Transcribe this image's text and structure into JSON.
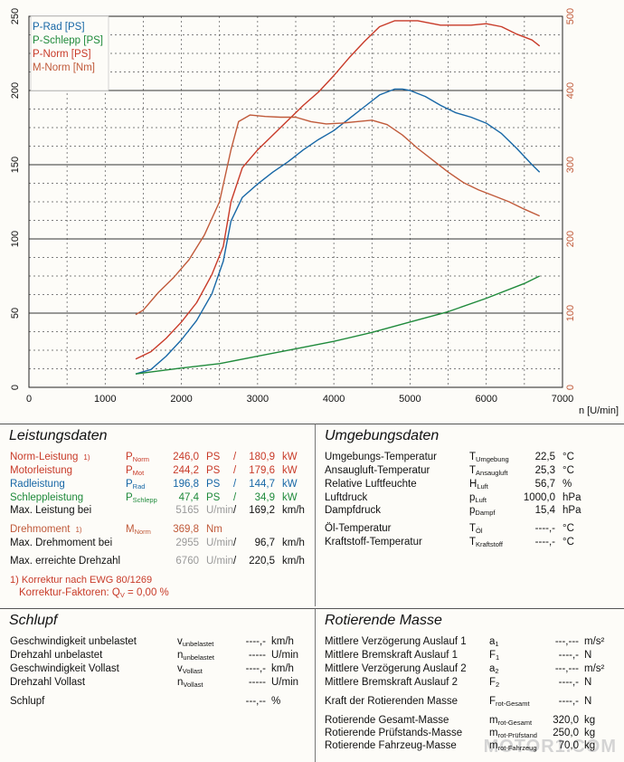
{
  "chart_data": {
    "type": "line",
    "xlabel": "n [U/min]",
    "x_ticks": [
      0,
      1000,
      2000,
      3000,
      4000,
      5000,
      6000,
      7000
    ],
    "y_left_ticks": [
      0,
      50,
      100,
      150,
      200,
      250
    ],
    "y_right_ticks": [
      0,
      100,
      200,
      300,
      400,
      500
    ],
    "xlim": [
      0,
      7000
    ],
    "ylim_left": [
      0,
      250
    ],
    "ylim_right": [
      0,
      500
    ],
    "grid": true,
    "legend_position": "top-left",
    "series": [
      {
        "name": "P-Rad [PS]",
        "axis": "left",
        "color": "#1767a6",
        "x": [
          1400,
          1600,
          1800,
          2000,
          2200,
          2400,
          2550,
          2650,
          2800,
          3000,
          3200,
          3400,
          3600,
          3800,
          4000,
          4200,
          4400,
          4600,
          4800,
          4900,
          5000,
          5200,
          5400,
          5600,
          5800,
          6000,
          6200,
          6400,
          6600,
          6700
        ],
        "y": [
          9,
          12,
          21,
          32,
          45,
          63,
          85,
          112,
          128,
          137,
          145,
          152,
          160,
          167,
          173,
          181,
          189,
          197,
          201,
          201,
          200,
          196,
          190,
          185,
          182,
          178,
          171,
          161,
          150,
          145
        ]
      },
      {
        "name": "P-Schlepp [PS]",
        "axis": "left",
        "color": "#1f8a3b",
        "x": [
          1400,
          2000,
          2500,
          3000,
          3500,
          4000,
          4500,
          5000,
          5500,
          6000,
          6500,
          6700
        ],
        "y": [
          9,
          13,
          16,
          21,
          26,
          31,
          37,
          44,
          51,
          60,
          70,
          75
        ]
      },
      {
        "name": "P-Norm [PS]",
        "axis": "left",
        "color": "#c83a28",
        "x": [
          1400,
          1600,
          1800,
          2000,
          2200,
          2400,
          2550,
          2650,
          2800,
          3000,
          3200,
          3400,
          3600,
          3800,
          4000,
          4200,
          4400,
          4600,
          4800,
          5000,
          5100,
          5200,
          5400,
          5600,
          5800,
          6000,
          6200,
          6400,
          6600,
          6700
        ],
        "y": [
          19,
          24,
          33,
          44,
          57,
          76,
          95,
          125,
          148,
          160,
          170,
          180,
          190,
          199,
          210,
          222,
          233,
          243,
          247,
          247,
          247,
          246,
          244,
          244,
          244,
          245,
          243,
          238,
          234,
          230
        ]
      },
      {
        "name": "M-Norm [Nm]",
        "axis": "right",
        "color": "#c05a3a",
        "x": [
          1400,
          1500,
          1700,
          1900,
          2100,
          2300,
          2500,
          2650,
          2750,
          2900,
          3100,
          3300,
          3500,
          3700,
          3900,
          4100,
          4300,
          4500,
          4700,
          4900,
          5100,
          5300,
          5500,
          5700,
          5900,
          6100,
          6300,
          6500,
          6700
        ],
        "y": [
          98,
          104,
          128,
          148,
          172,
          205,
          250,
          320,
          358,
          367,
          365,
          364,
          364,
          358,
          355,
          356,
          358,
          360,
          354,
          340,
          322,
          306,
          290,
          276,
          266,
          258,
          250,
          240,
          231
        ]
      }
    ]
  },
  "leistungsdaten": {
    "title": "Leistungsdaten",
    "rows": [
      {
        "label": "Norm-Leistung",
        "note": "1)",
        "sym": "P",
        "sub": "Norm",
        "ps": "246,0",
        "ps_unit": "PS",
        "kw": "180,9",
        "kw_unit": "kW"
      },
      {
        "label": "Motorleistung",
        "note": "",
        "sym": "P",
        "sub": "Mot",
        "ps": "244,2",
        "ps_unit": "PS",
        "kw": "179,6",
        "kw_unit": "kW"
      },
      {
        "label": "Radleistung",
        "note": "",
        "sym": "P",
        "sub": "Rad",
        "ps": "196,8",
        "ps_unit": "PS",
        "kw": "144,7",
        "kw_unit": "kW"
      },
      {
        "label": "Schleppleistung",
        "note": "",
        "sym": "P",
        "sub": "Schlepp",
        "ps": "47,4",
        "ps_unit": "PS",
        "kw": "34,9",
        "kw_unit": "kW"
      }
    ],
    "max_power": {
      "label": "Max. Leistung bei",
      "rpm": "5165",
      "rpm_unit": "U/min",
      "speed": "169,2",
      "speed_unit": "km/h"
    },
    "torque": {
      "label": "Drehmoment",
      "note": "1)",
      "sym": "M",
      "sub": "Norm",
      "value": "369,8",
      "unit": "Nm"
    },
    "max_torque": {
      "label": "Max. Drehmoment bei",
      "rpm": "2955",
      "rpm_unit": "U/min",
      "speed": "96,7",
      "speed_unit": "km/h"
    },
    "max_rpm": {
      "label": "Max. erreichte Drehzahl",
      "rpm": "6760",
      "rpm_unit": "U/min",
      "speed": "220,5",
      "speed_unit": "km/h"
    },
    "footnote1": "1) Korrektur nach EWG 80/1269",
    "footnote2": "Korrektur-Faktoren: Q",
    "footnote2_sub": "V",
    "footnote2_val": "=   0,00 %"
  },
  "umgebungsdaten": {
    "title": "Umgebungsdaten",
    "rows": [
      {
        "label": "Umgebungs-Temperatur",
        "sym": "T",
        "sub": "Umgebung",
        "value": "22,5",
        "unit": "°C"
      },
      {
        "label": "Ansaugluft-Temperatur",
        "sym": "T",
        "sub": "Ansaugluft",
        "value": "25,3",
        "unit": "°C"
      },
      {
        "label": "Relative Luftfeuchte",
        "sym": "H",
        "sub": "Luft",
        "value": "56,7",
        "unit": "%"
      },
      {
        "label": "Luftdruck",
        "sym": "p",
        "sub": "Luft",
        "value": "1000,0",
        "unit": "hPa"
      },
      {
        "label": "Dampfdruck",
        "sym": "p",
        "sub": "Dampf",
        "value": "15,4",
        "unit": "hPa"
      },
      {
        "label": "Öl-Temperatur",
        "sym": "T",
        "sub": "Öl",
        "value": "----,-",
        "unit": "°C"
      },
      {
        "label": "Kraftstoff-Temperatur",
        "sym": "T",
        "sub": "Kraftstoff",
        "value": "----,-",
        "unit": "°C"
      }
    ]
  },
  "schlupf": {
    "title": "Schlupf",
    "rows": [
      {
        "label": "Geschwindigkeit unbelastet",
        "sym": "v",
        "sub": "unbelastet",
        "value": "----,-",
        "unit": "km/h"
      },
      {
        "label": "Drehzahl unbelastet",
        "sym": "n",
        "sub": "unbelastet",
        "value": "-----",
        "unit": "U/min"
      },
      {
        "label": "Geschwindigkeit Vollast",
        "sym": "v",
        "sub": "Vollast",
        "value": "----,-",
        "unit": "km/h"
      },
      {
        "label": "Drehzahl Vollast",
        "sym": "n",
        "sub": "Vollast",
        "value": "-----",
        "unit": "U/min"
      },
      {
        "label": "Schlupf",
        "sym": "",
        "sub": "",
        "value": "---,--",
        "unit": "%"
      }
    ]
  },
  "rotierende_masse": {
    "title": "Rotierende Masse",
    "rows": [
      {
        "label": "Mittlere Verzögerung Auslauf 1",
        "sym": "a",
        "sub": "1",
        "value": "---,---",
        "unit": "m/s²"
      },
      {
        "label": "Mittlere Bremskraft Auslauf 1",
        "sym": "F",
        "sub": "1",
        "value": "----,-",
        "unit": "N"
      },
      {
        "label": "Mittlere Verzögerung Auslauf 2",
        "sym": "a",
        "sub": "2",
        "value": "---,---",
        "unit": "m/s²"
      },
      {
        "label": "Mittlere Bremskraft Auslauf 2",
        "sym": "F",
        "sub": "2",
        "value": "----,-",
        "unit": "N"
      },
      {
        "label": "Kraft der Rotierenden Masse",
        "sym": "F",
        "sub": "rot-Gesamt",
        "value": "----,-",
        "unit": "N"
      },
      {
        "label": "Rotierende Gesamt-Masse",
        "sym": "m",
        "sub": "rot-Gesamt",
        "value": "320,0",
        "unit": "kg"
      },
      {
        "label": "Rotierende Prüfstands-Masse",
        "sym": "m",
        "sub": "rot-Prüfstand",
        "value": "250,0",
        "unit": "kg"
      },
      {
        "label": "Rotierende Fahrzeug-Masse",
        "sym": "m",
        "sub": "rot-Fahrzeug",
        "value": "70,0",
        "unit": "kg"
      }
    ]
  },
  "watermark": "MOTOR1.COM"
}
